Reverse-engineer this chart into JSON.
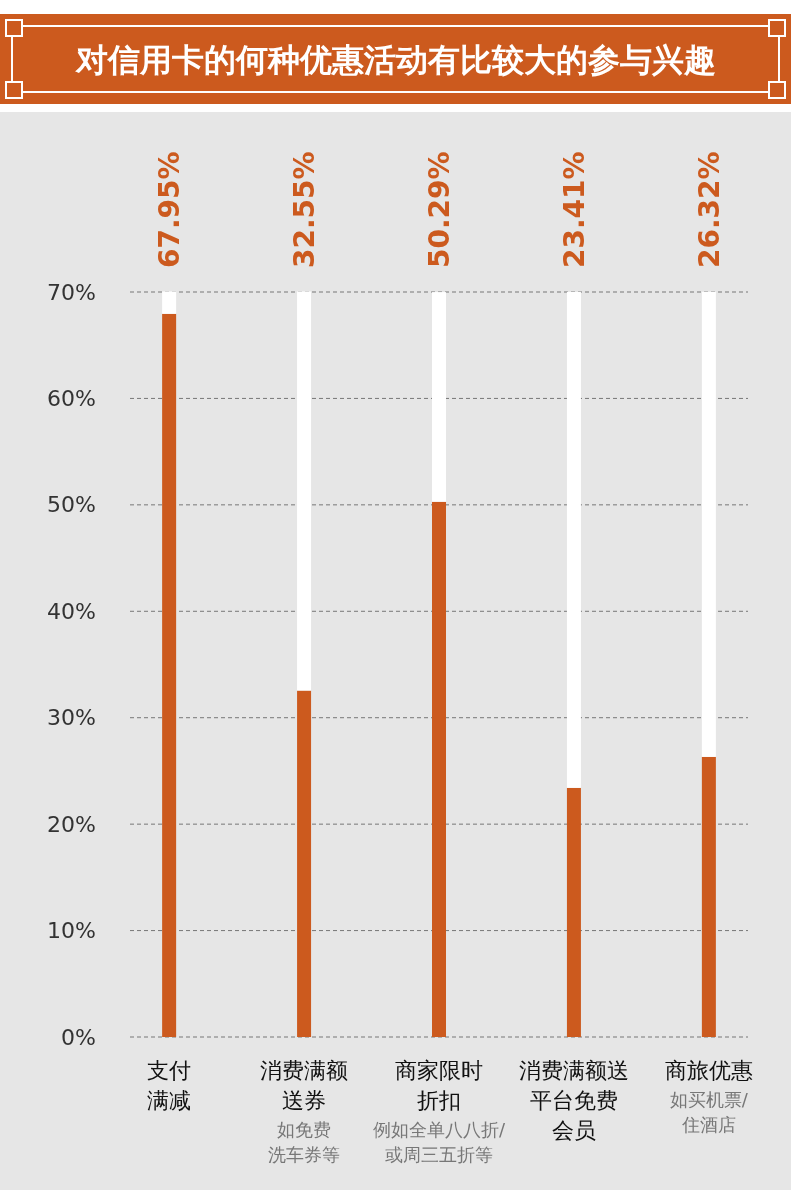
{
  "chart_data": {
    "type": "bar",
    "title": "对信用卡的何种优惠活动有比较大的参与兴趣",
    "categories": [
      "支付满减",
      "消费满额送券",
      "商家限时折扣",
      "消费满额送平台免费会员",
      "商旅优惠"
    ],
    "stacked": true,
    "series": [
      {
        "color": "#cc5a1e",
        "values": [
          67.95,
          32.55,
          50.29,
          23.41,
          26.32
        ],
        "value_labels": [
          "67.95%",
          "32.55%",
          "50.29%",
          "23.41%",
          "26.32%"
        ]
      },
      {
        "color": "#ffffff",
        "values": [
          2.1,
          37.5,
          19.7,
          46.6,
          43.7
        ]
      }
    ],
    "ylim": [
      0,
      70
    ],
    "yticks": [
      {
        "value": 0,
        "label": "0%"
      },
      {
        "value": 10,
        "label": "10%"
      },
      {
        "value": 20,
        "label": "20%"
      },
      {
        "value": 30,
        "label": "30%"
      },
      {
        "value": 40,
        "label": "40%"
      },
      {
        "value": 50,
        "label": "50%"
      },
      {
        "value": 60,
        "label": "60%"
      },
      {
        "value": 70,
        "label": "70%"
      }
    ],
    "grid": "y",
    "annotations": [
      "如免费洗车券等",
      "例如全单八八折/或周三五折等",
      "如买机票/住酒店"
    ]
  }
}
